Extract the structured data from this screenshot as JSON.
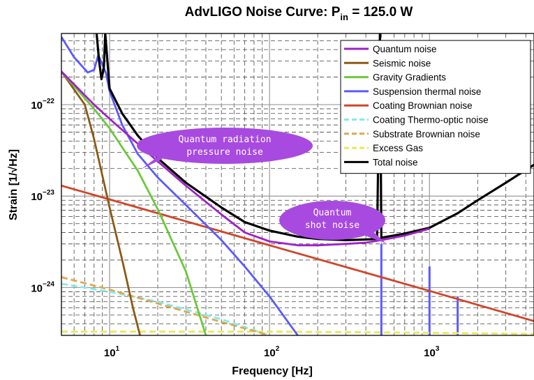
{
  "chart_data": {
    "type": "line",
    "title": "AdvLIGO Noise Curve: P",
    "title_subscript": "in",
    "title_suffix": " = 125.0 W",
    "xlabel": "Frequency [Hz]",
    "ylabel": "Strain [1/√Hz]",
    "x_scale": "log",
    "y_scale": "log",
    "xlim": [
      5,
      4500
    ],
    "ylim": [
      3e-25,
      6e-22
    ],
    "x_ticks": [
      {
        "value": 10,
        "base": "10",
        "exp": "1"
      },
      {
        "value": 100,
        "base": "10",
        "exp": "2"
      },
      {
        "value": 1000,
        "base": "10",
        "exp": "3"
      }
    ],
    "y_ticks": [
      {
        "value": 1e-24,
        "base": "10",
        "exp": "−24"
      },
      {
        "value": 1e-23,
        "base": "10",
        "exp": "−23"
      },
      {
        "value": 1e-22,
        "base": "10",
        "exp": "−22"
      }
    ],
    "grid": true,
    "legend_position": "top-right",
    "series": [
      {
        "name": "Quantum noise",
        "color": "#a020c8",
        "dash": "solid",
        "points": [
          [
            5,
            2.3e-22
          ],
          [
            8,
            1e-22
          ],
          [
            10,
            7e-23
          ],
          [
            20,
            2.4e-23
          ],
          [
            30,
            1.3e-23
          ],
          [
            50,
            6.3e-24
          ],
          [
            70,
            4e-24
          ],
          [
            100,
            3.2e-24
          ],
          [
            150,
            2.9e-24
          ],
          [
            200,
            2.9e-24
          ],
          [
            300,
            3e-24
          ],
          [
            400,
            3.1e-24
          ],
          [
            500,
            3.3e-24
          ],
          [
            700,
            3.7e-24
          ],
          [
            1000,
            4.4e-24
          ]
        ]
      },
      {
        "name": "Seismic noise",
        "color": "#8b5a14",
        "dash": "solid",
        "points": [
          [
            5,
            2.3e-22
          ],
          [
            7,
            1e-22
          ],
          [
            8,
            4.2e-23
          ],
          [
            10,
            7.5e-24
          ],
          [
            12,
            2e-24
          ],
          [
            14,
            6e-25
          ],
          [
            15.5,
            3e-25
          ]
        ]
      },
      {
        "name": "Gravity Gradients",
        "color": "#6cc83c",
        "dash": "solid",
        "points": [
          [
            5,
            2.3e-22
          ],
          [
            8,
            9e-23
          ],
          [
            10,
            5.5e-23
          ],
          [
            15,
            1.9e-23
          ],
          [
            20,
            7.2e-24
          ],
          [
            30,
            1.5e-24
          ],
          [
            40,
            3e-25
          ]
        ]
      },
      {
        "name": "Suspension thermal noise",
        "color": "#5a5aff",
        "dash": "solid",
        "points": [
          [
            5,
            5.5e-22
          ],
          [
            6,
            3.3e-22
          ],
          [
            7.3,
            2.25e-22
          ],
          [
            8,
            2.4e-22
          ],
          [
            8.5,
            3.5e-22
          ],
          [
            9.5,
            2.2e-22
          ],
          [
            10,
            1.4e-22
          ],
          [
            12,
            6e-23
          ],
          [
            15,
            2.9e-23
          ],
          [
            20,
            1.6e-23
          ],
          [
            30,
            8e-24
          ],
          [
            50,
            3.3e-24
          ],
          [
            70,
            1.7e-24
          ],
          [
            100,
            8e-25
          ],
          [
            150,
            3e-25
          ]
        ]
      },
      {
        "name": "Coating Brownian noise",
        "color": "#d24428",
        "dash": "solid",
        "points": [
          [
            5,
            1.3e-23
          ],
          [
            10,
            9.2e-24
          ],
          [
            50,
            4.1e-24
          ],
          [
            100,
            2.9e-24
          ],
          [
            500,
            1.3e-24
          ],
          [
            1000,
            9.2e-25
          ],
          [
            4500,
            4.3e-25
          ]
        ]
      },
      {
        "name": "Coating Thermo-optic noise",
        "color": "#80ecec",
        "dash": "dashed",
        "points": [
          [
            5,
            1.1e-24
          ],
          [
            10,
            9e-25
          ],
          [
            20,
            7e-25
          ],
          [
            50,
            4.5e-25
          ],
          [
            100,
            3e-25
          ]
        ]
      },
      {
        "name": "Substrate Brownian noise",
        "color": "#e0a850",
        "dash": "dashed",
        "points": [
          [
            5,
            1.3e-24
          ],
          [
            10,
            9.5e-25
          ],
          [
            50,
            4.2e-25
          ],
          [
            100,
            3e-25
          ]
        ]
      },
      {
        "name": "Excess Gas",
        "color": "#e8e858",
        "dash": "dashed",
        "points": [
          [
            5,
            3.3e-25
          ],
          [
            100,
            3.3e-25
          ],
          [
            1000,
            3.2e-25
          ],
          [
            4500,
            3.1e-25
          ]
        ]
      },
      {
        "name": "Total noise",
        "color": "#000000",
        "dash": "solid",
        "points": [
          [
            8.3,
            6e-22
          ],
          [
            8.6,
            3e-22
          ],
          [
            8.9,
            1.9e-22
          ],
          [
            9.2,
            2.5e-22
          ],
          [
            9.4,
            6e-22
          ],
          [
            10,
            1.5e-22
          ],
          [
            12,
            8e-23
          ],
          [
            15,
            4.6e-23
          ],
          [
            20,
            2.6e-23
          ],
          [
            30,
            1.4e-23
          ],
          [
            50,
            7.5e-24
          ],
          [
            70,
            5.2e-24
          ],
          [
            100,
            4.2e-24
          ],
          [
            150,
            3.6e-24
          ],
          [
            200,
            3.4e-24
          ],
          [
            300,
            3.3e-24
          ],
          [
            400,
            3.35e-24
          ],
          [
            470,
            3.4e-24
          ],
          [
            490,
            6e-22
          ],
          [
            500,
            3.5e-24
          ],
          [
            700,
            3.9e-24
          ],
          [
            1000,
            4.5e-24
          ],
          [
            1500,
            6.5e-24
          ],
          [
            2000,
            9e-24
          ],
          [
            3000,
            1.4e-23
          ],
          [
            4500,
            2.2e-23
          ]
        ]
      }
    ],
    "spikes": [
      {
        "series": "Suspension thermal noise",
        "x": 500,
        "y_top": 3e-24
      },
      {
        "series": "Suspension thermal noise",
        "x": 1000,
        "y_top": 1.7e-24
      },
      {
        "series": "Suspension thermal noise",
        "x": 1500,
        "y_top": 8e-25
      }
    ],
    "annotations": [
      {
        "lines": [
          "Quantum radiation",
          "pressure noise"
        ],
        "color": "#a84ae0"
      },
      {
        "lines": [
          "Quantum",
          "shot noise"
        ],
        "color": "#a84ae0"
      }
    ]
  }
}
